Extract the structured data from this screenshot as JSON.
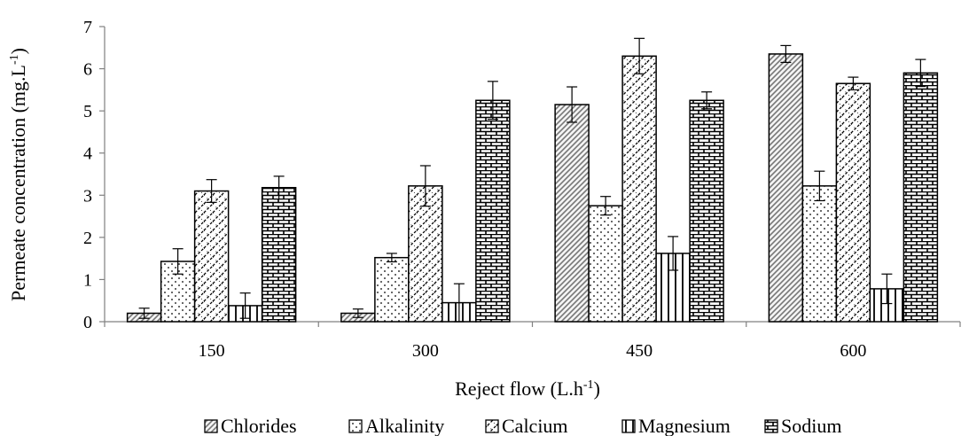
{
  "chart_data": {
    "type": "bar",
    "xlabel": "Reject flow (L.h",
    "xlabel_sup": "-1",
    "xlabel_end": ")",
    "ylabel": "Permeate concentration (mg.L",
    "ylabel_sup": "-1",
    "ylabel_end": ")",
    "ylim": [
      0,
      7
    ],
    "yticks": [
      0,
      1,
      2,
      3,
      4,
      5,
      6,
      7
    ],
    "categories": [
      "150",
      "300",
      "450",
      "600"
    ],
    "legend_position": "bottom",
    "grid": false,
    "series": [
      {
        "name": "Chlorides",
        "pattern": "diagonal-hatch",
        "values": [
          0.2,
          0.2,
          5.15,
          6.35
        ],
        "errors": [
          0.12,
          0.1,
          0.42,
          0.2
        ]
      },
      {
        "name": "Alkalinity",
        "pattern": "dots",
        "values": [
          1.43,
          1.52,
          2.75,
          3.22
        ],
        "errors": [
          0.3,
          0.1,
          0.22,
          0.35
        ]
      },
      {
        "name": "Calcium",
        "pattern": "wave",
        "values": [
          3.1,
          3.22,
          6.3,
          5.65
        ],
        "errors": [
          0.27,
          0.48,
          0.42,
          0.15
        ]
      },
      {
        "name": "Magnesium",
        "pattern": "vertical-lines",
        "values": [
          0.38,
          0.45,
          1.62,
          0.78
        ],
        "errors": [
          0.3,
          0.45,
          0.4,
          0.35
        ]
      },
      {
        "name": "Sodium",
        "pattern": "brick",
        "values": [
          3.18,
          5.25,
          5.25,
          5.9
        ],
        "errors": [
          0.27,
          0.45,
          0.2,
          0.32
        ]
      }
    ]
  }
}
